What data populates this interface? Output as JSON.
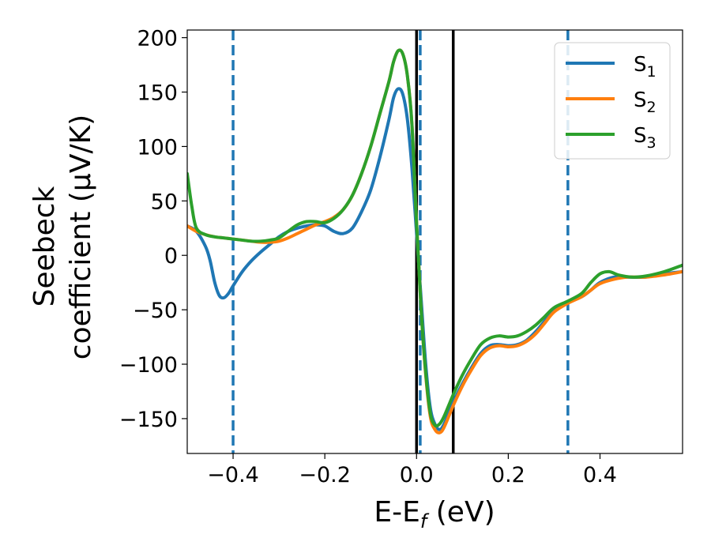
{
  "chart_data": {
    "type": "line",
    "xlabel": "E-E",
    "xlabel_sub": "f",
    "xlabel_unit": " (eV)",
    "ylabel_line1": "Seebeck",
    "ylabel_line2": "coefficient  (μV/K)",
    "xlim": [
      -0.5,
      0.58
    ],
    "ylim": [
      -182,
      207
    ],
    "x_ticks": [
      -0.4,
      -0.2,
      0.0,
      0.2,
      0.4
    ],
    "x_tick_labels": [
      "−0.4",
      "−0.2",
      "0.0",
      "0.2",
      "0.4"
    ],
    "y_ticks": [
      200,
      150,
      100,
      50,
      0,
      -50,
      -100,
      -150
    ],
    "y_tick_labels": [
      "200",
      "150",
      "100",
      "50",
      "0",
      "−50",
      "−100",
      "−150"
    ],
    "grid": false,
    "legend_position": "top-right",
    "series": [
      {
        "name": "S",
        "sub": "1",
        "color": "#1f77b4",
        "points": [
          [
            -0.5,
            27
          ],
          [
            -0.48,
            22
          ],
          [
            -0.46,
            8
          ],
          [
            -0.45,
            -5
          ],
          [
            -0.44,
            -25
          ],
          [
            -0.43,
            -37
          ],
          [
            -0.42,
            -39
          ],
          [
            -0.41,
            -35
          ],
          [
            -0.4,
            -28
          ],
          [
            -0.38,
            -15
          ],
          [
            -0.36,
            -5
          ],
          [
            -0.34,
            3
          ],
          [
            -0.32,
            10
          ],
          [
            -0.3,
            17
          ],
          [
            -0.28,
            22
          ],
          [
            -0.26,
            25
          ],
          [
            -0.24,
            27
          ],
          [
            -0.22,
            28
          ],
          [
            -0.2,
            27
          ],
          [
            -0.18,
            22
          ],
          [
            -0.16,
            20
          ],
          [
            -0.14,
            25
          ],
          [
            -0.12,
            40
          ],
          [
            -0.1,
            60
          ],
          [
            -0.08,
            90
          ],
          [
            -0.06,
            125
          ],
          [
            -0.05,
            145
          ],
          [
            -0.04,
            153
          ],
          [
            -0.03,
            148
          ],
          [
            -0.02,
            125
          ],
          [
            -0.01,
            80
          ],
          [
            0,
            20
          ],
          [
            0.01,
            -40
          ],
          [
            0.02,
            -100
          ],
          [
            0.03,
            -140
          ],
          [
            0.04,
            -155
          ],
          [
            0.05,
            -160
          ],
          [
            0.06,
            -155
          ],
          [
            0.08,
            -135
          ],
          [
            0.1,
            -118
          ],
          [
            0.12,
            -103
          ],
          [
            0.14,
            -90
          ],
          [
            0.16,
            -83
          ],
          [
            0.18,
            -82
          ],
          [
            0.2,
            -83
          ],
          [
            0.22,
            -82
          ],
          [
            0.24,
            -78
          ],
          [
            0.26,
            -70
          ],
          [
            0.28,
            -60
          ],
          [
            0.3,
            -50
          ],
          [
            0.33,
            -43
          ],
          [
            0.36,
            -38
          ],
          [
            0.38,
            -32
          ],
          [
            0.4,
            -25
          ],
          [
            0.43,
            -20
          ],
          [
            0.46,
            -20
          ],
          [
            0.5,
            -20
          ],
          [
            0.54,
            -17
          ],
          [
            0.58,
            -15
          ]
        ]
      },
      {
        "name": "S",
        "sub": "2",
        "color": "#ff7f0e",
        "points": [
          [
            -0.5,
            27
          ],
          [
            -0.48,
            22
          ],
          [
            -0.46,
            19
          ],
          [
            -0.44,
            17
          ],
          [
            -0.42,
            16
          ],
          [
            -0.4,
            15
          ],
          [
            -0.38,
            14
          ],
          [
            -0.36,
            13
          ],
          [
            -0.34,
            12
          ],
          [
            -0.32,
            12
          ],
          [
            -0.3,
            13
          ],
          [
            -0.28,
            16
          ],
          [
            -0.26,
            20
          ],
          [
            -0.24,
            24
          ],
          [
            -0.22,
            28
          ],
          [
            -0.2,
            31
          ],
          [
            -0.18,
            35
          ],
          [
            -0.16,
            42
          ],
          [
            -0.14,
            55
          ],
          [
            -0.12,
            75
          ],
          [
            -0.1,
            100
          ],
          [
            -0.08,
            130
          ],
          [
            -0.06,
            160
          ],
          [
            -0.05,
            178
          ],
          [
            -0.04,
            188
          ],
          [
            -0.03,
            185
          ],
          [
            -0.02,
            165
          ],
          [
            -0.01,
            120
          ],
          [
            0,
            30
          ],
          [
            0.01,
            -50
          ],
          [
            0.02,
            -110
          ],
          [
            0.03,
            -148
          ],
          [
            0.04,
            -160
          ],
          [
            0.05,
            -163
          ],
          [
            0.06,
            -158
          ],
          [
            0.08,
            -138
          ],
          [
            0.1,
            -120
          ],
          [
            0.12,
            -105
          ],
          [
            0.14,
            -92
          ],
          [
            0.16,
            -85
          ],
          [
            0.18,
            -83
          ],
          [
            0.2,
            -84
          ],
          [
            0.22,
            -83
          ],
          [
            0.24,
            -79
          ],
          [
            0.26,
            -72
          ],
          [
            0.28,
            -62
          ],
          [
            0.3,
            -52
          ],
          [
            0.33,
            -44
          ],
          [
            0.36,
            -38
          ],
          [
            0.38,
            -32
          ],
          [
            0.4,
            -26
          ],
          [
            0.43,
            -22
          ],
          [
            0.46,
            -20
          ],
          [
            0.5,
            -20
          ],
          [
            0.54,
            -18
          ],
          [
            0.58,
            -15
          ]
        ]
      },
      {
        "name": "S",
        "sub": "3",
        "color": "#2ca02c",
        "points": [
          [
            -0.5,
            75
          ],
          [
            -0.49,
            45
          ],
          [
            -0.48,
            25
          ],
          [
            -0.46,
            19
          ],
          [
            -0.44,
            17
          ],
          [
            -0.42,
            16
          ],
          [
            -0.4,
            15
          ],
          [
            -0.38,
            14
          ],
          [
            -0.36,
            13
          ],
          [
            -0.34,
            13
          ],
          [
            -0.32,
            14
          ],
          [
            -0.3,
            16
          ],
          [
            -0.28,
            22
          ],
          [
            -0.26,
            28
          ],
          [
            -0.24,
            31
          ],
          [
            -0.22,
            31
          ],
          [
            -0.2,
            30
          ],
          [
            -0.18,
            34
          ],
          [
            -0.16,
            42
          ],
          [
            -0.14,
            55
          ],
          [
            -0.12,
            75
          ],
          [
            -0.1,
            100
          ],
          [
            -0.08,
            130
          ],
          [
            -0.06,
            160
          ],
          [
            -0.05,
            178
          ],
          [
            -0.04,
            188
          ],
          [
            -0.03,
            185
          ],
          [
            -0.02,
            165
          ],
          [
            -0.01,
            120
          ],
          [
            0,
            30
          ],
          [
            0.01,
            -50
          ],
          [
            0.02,
            -108
          ],
          [
            0.03,
            -145
          ],
          [
            0.04,
            -156
          ],
          [
            0.05,
            -155
          ],
          [
            0.06,
            -148
          ],
          [
            0.08,
            -128
          ],
          [
            0.1,
            -110
          ],
          [
            0.12,
            -95
          ],
          [
            0.14,
            -82
          ],
          [
            0.16,
            -76
          ],
          [
            0.18,
            -74
          ],
          [
            0.2,
            -75
          ],
          [
            0.22,
            -74
          ],
          [
            0.24,
            -70
          ],
          [
            0.26,
            -64
          ],
          [
            0.28,
            -56
          ],
          [
            0.3,
            -48
          ],
          [
            0.33,
            -42
          ],
          [
            0.36,
            -35
          ],
          [
            0.38,
            -25
          ],
          [
            0.4,
            -17
          ],
          [
            0.42,
            -15
          ],
          [
            0.44,
            -18
          ],
          [
            0.47,
            -20
          ],
          [
            0.5,
            -19
          ],
          [
            0.54,
            -15
          ],
          [
            0.58,
            -9
          ]
        ]
      }
    ],
    "vlines": [
      {
        "x": -0.4,
        "color": "#1f77b4",
        "style": "dashed"
      },
      {
        "x": 0.008,
        "color": "#1f77b4",
        "style": "dashed"
      },
      {
        "x": 0.33,
        "color": "#1f77b4",
        "style": "dashed"
      },
      {
        "x": 0.0,
        "color": "#000000",
        "style": "solid"
      },
      {
        "x": 0.08,
        "color": "#000000",
        "style": "solid"
      }
    ]
  }
}
